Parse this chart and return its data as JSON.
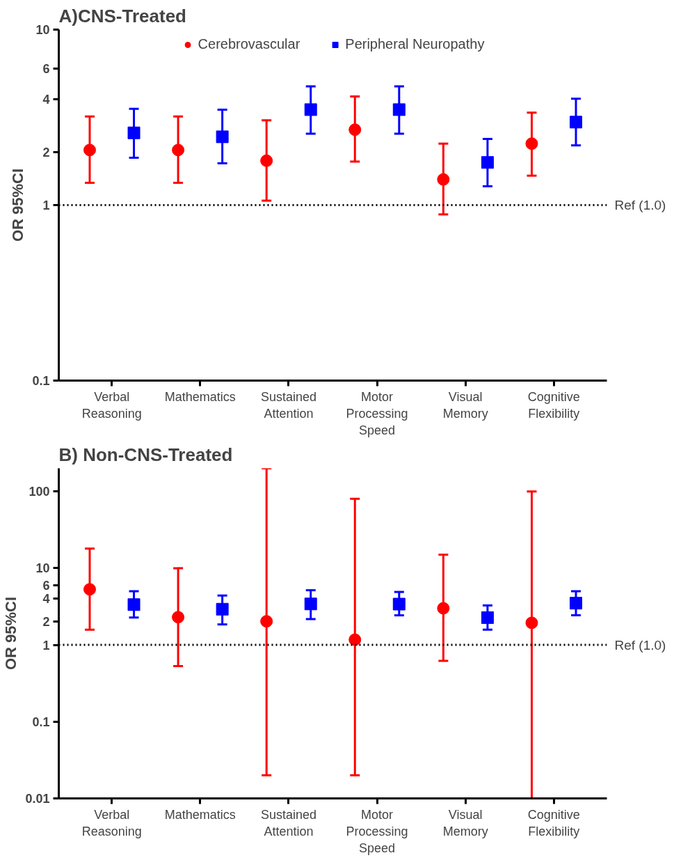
{
  "chart_data": [
    {
      "type": "scatter",
      "title": "A)CNS-Treated",
      "ylabel": "OR 95%CI",
      "categories": [
        "Verbal\nReasoning",
        "Mathematics",
        "Sustained\nAttention",
        "Motor\nProcessing\nSpeed",
        "Visual\nMemory",
        "Cognitive\nFlexibility"
      ],
      "log": "y",
      "ylim": [
        0.1,
        10
      ],
      "yticks": [
        0.1,
        1,
        2,
        4,
        6,
        10
      ],
      "grid": false,
      "legend": "top",
      "series": [
        {
          "name": "Cerebrovascular",
          "color": "#ff0000",
          "marker": "circle",
          "values": [
            2.06,
            2.06,
            1.79,
            2.69,
            1.4,
            2.24
          ],
          "errors": [
            [
              1.34,
              3.2
            ],
            [
              1.34,
              3.2
            ],
            [
              1.06,
              3.04
            ],
            [
              1.77,
              4.16
            ],
            [
              0.885,
              2.24
            ],
            [
              1.47,
              3.36
            ]
          ]
        },
        {
          "name": "Peripheral Neuropathy",
          "color": "#0000ff",
          "marker": "square",
          "values": [
            2.58,
            2.45,
            3.5,
            3.5,
            1.75,
            2.97
          ],
          "errors": [
            [
              1.86,
              3.54
            ],
            [
              1.73,
              3.5
            ],
            [
              2.55,
              4.75
            ],
            [
              2.55,
              4.75
            ],
            [
              1.28,
              2.38
            ],
            [
              2.19,
              4.04
            ]
          ]
        }
      ],
      "ref_lines": [
        {
          "axis": "y",
          "value": 1,
          "label": "Ref (1.0)",
          "color": "#000000",
          "line_style": "dotted"
        }
      ]
    },
    {
      "type": "scatter",
      "title": "B) Non-CNS-Treated",
      "ylabel": "OR 95%CI",
      "categories": [
        "Verbal\nReasoning",
        "Mathematics",
        "Sustained\nAttention",
        "Motor\nProcessing\nSpeed",
        "Visual\nMemory",
        "Cognitive\nFlexibility"
      ],
      "log": "y",
      "ylim": [
        0.01,
        200
      ],
      "yticks": [
        0.01,
        0.1,
        1,
        2,
        4,
        6,
        10,
        100
      ],
      "grid": false,
      "series": [
        {
          "color": "#ff0000",
          "marker": "circle",
          "values": [
            5.3,
            2.3,
            2.03,
            1.17,
            3.0,
            1.94
          ],
          "errors": [
            [
              1.58,
              18
            ],
            [
              0.53,
              10
            ],
            [
              0.02,
              200
            ],
            [
              0.02,
              80
            ],
            [
              0.62,
              15
            ],
            [
              0.01,
              100
            ]
          ]
        },
        {
          "color": "#0000ff",
          "marker": "square",
          "values": [
            3.35,
            2.92,
            3.42,
            3.4,
            2.27,
            3.5
          ],
          "errors": [
            [
              2.27,
              5.0
            ],
            [
              1.85,
              4.4
            ],
            [
              2.17,
              5.16
            ],
            [
              2.43,
              4.9
            ],
            [
              1.58,
              3.27
            ],
            [
              2.43,
              5.0
            ]
          ]
        }
      ],
      "ref_lines": [
        {
          "axis": "y",
          "value": 1,
          "label": "Ref (1.0)",
          "color": "#000000",
          "line_style": "dotted"
        }
      ]
    }
  ]
}
